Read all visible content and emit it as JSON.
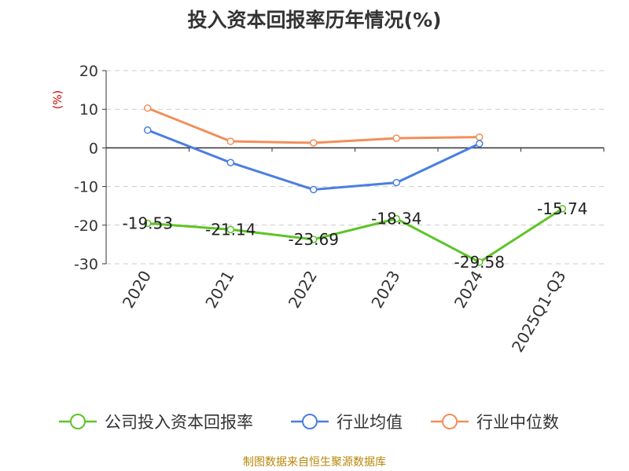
{
  "chart_data": {
    "type": "line",
    "title": "投入资本回报率历年情况(%)",
    "ylabel": "(%)",
    "xlabel": "",
    "categories": [
      "2020",
      "2021",
      "2022",
      "2023",
      "2024",
      "2025Q1-Q3"
    ],
    "ylim": [
      -30,
      20
    ],
    "yticks": [
      20,
      10,
      0,
      -10,
      -20,
      -30
    ],
    "grid": "horizontal dashed",
    "legend_position": "bottom",
    "series": [
      {
        "name": "公司投入资本回报率",
        "color": "#5ec426",
        "values": [
          -19.53,
          -21.14,
          -23.69,
          -18.34,
          -29.58,
          -15.74
        ],
        "labels": [
          "-19.53",
          "-21.14",
          "-23.69",
          "-18.34",
          "-29.58",
          "-15.74"
        ]
      },
      {
        "name": "行业均值",
        "color": "#4a7fe0",
        "values": [
          4.6,
          -3.8,
          -10.8,
          -9.0,
          1.1,
          null
        ]
      },
      {
        "name": "行业中位数",
        "color": "#f28f5a",
        "values": [
          10.3,
          1.7,
          1.3,
          2.5,
          2.8,
          null
        ]
      }
    ]
  },
  "source": "制图数据来自恒生聚源数据库"
}
